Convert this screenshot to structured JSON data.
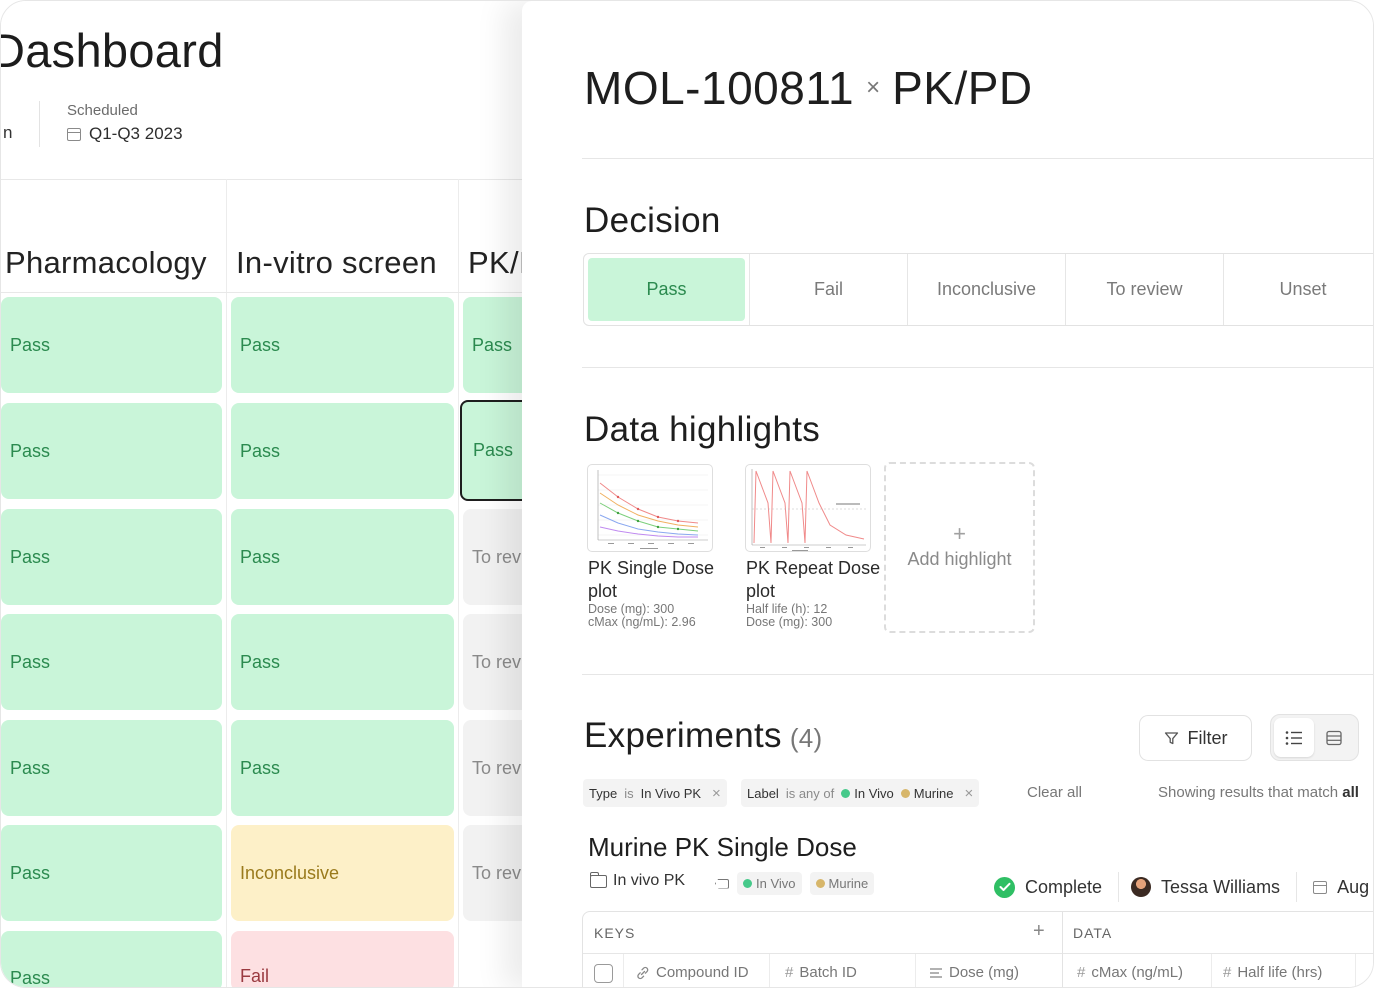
{
  "dashboard": {
    "title": "Dashboard",
    "meta_left": "n",
    "scheduled_label": "Scheduled",
    "scheduled_value": "Q1-Q3 2023",
    "columns": [
      "Pharmacology",
      "In-vitro screen",
      "PK/I"
    ],
    "rows": [
      [
        "Pass",
        "Pass",
        "Pass"
      ],
      [
        "Pass",
        "Pass",
        "Pass"
      ],
      [
        "Pass",
        "Pass",
        "To rev"
      ],
      [
        "Pass",
        "Pass",
        "To rev"
      ],
      [
        "Pass",
        "Pass",
        "To rev"
      ],
      [
        "Pass",
        "Inconclusive",
        "To rev"
      ],
      [
        "Pass",
        "Fail",
        ""
      ]
    ]
  },
  "panel": {
    "molecule": "MOL-100811",
    "separator": "×",
    "study": "PK/PD",
    "decision": {
      "title": "Decision",
      "options": [
        "Pass",
        "Fail",
        "Inconclusive",
        "To review",
        "Unset"
      ],
      "selected": "Pass"
    },
    "highlights": {
      "title": "Data highlights",
      "items": [
        {
          "title": "PK Single Dose plot",
          "meta1": "Dose (mg): 300",
          "meta2": "cMax (ng/mL): 2.96"
        },
        {
          "title": "PK Repeat Dose plot",
          "meta1": "Half life (h): 12",
          "meta2": "Dose (mg): 300"
        }
      ],
      "add_label": "Add highlight"
    },
    "experiments": {
      "title": "Experiments",
      "count": "(4)",
      "filter_label": "Filter",
      "chips": {
        "type_key": "Type",
        "type_op": "is",
        "type_val": "In Vivo PK",
        "label_key": "Label",
        "label_op": "is any of",
        "label_val1": "In Vivo",
        "label_val2": "Murine"
      },
      "clear_all": "Clear all",
      "showing_prefix": "Showing results that match",
      "showing_bold": "all",
      "experiment": {
        "name": "Murine PK Single Dose",
        "folder": "In vivo PK",
        "tag1": "In Vivo",
        "tag2": "Murine",
        "status": "Complete",
        "owner": "Tessa Williams",
        "date": "Aug"
      },
      "table": {
        "keys_header": "KEYS",
        "data_header": "DATA",
        "key_columns": [
          "Compound ID",
          "Batch ID",
          "Dose (mg)"
        ],
        "data_columns": [
          "cMax (ng/mL)",
          "Half life (hrs)"
        ]
      }
    }
  },
  "colors": {
    "pass_bg": "#c9f5d9",
    "pass_text": "#2b8a4f",
    "review_bg": "#f2f2f2",
    "inconclusive_bg": "#fdf0c8",
    "fail_bg": "#fde0e2",
    "complete": "#2fbf64"
  }
}
